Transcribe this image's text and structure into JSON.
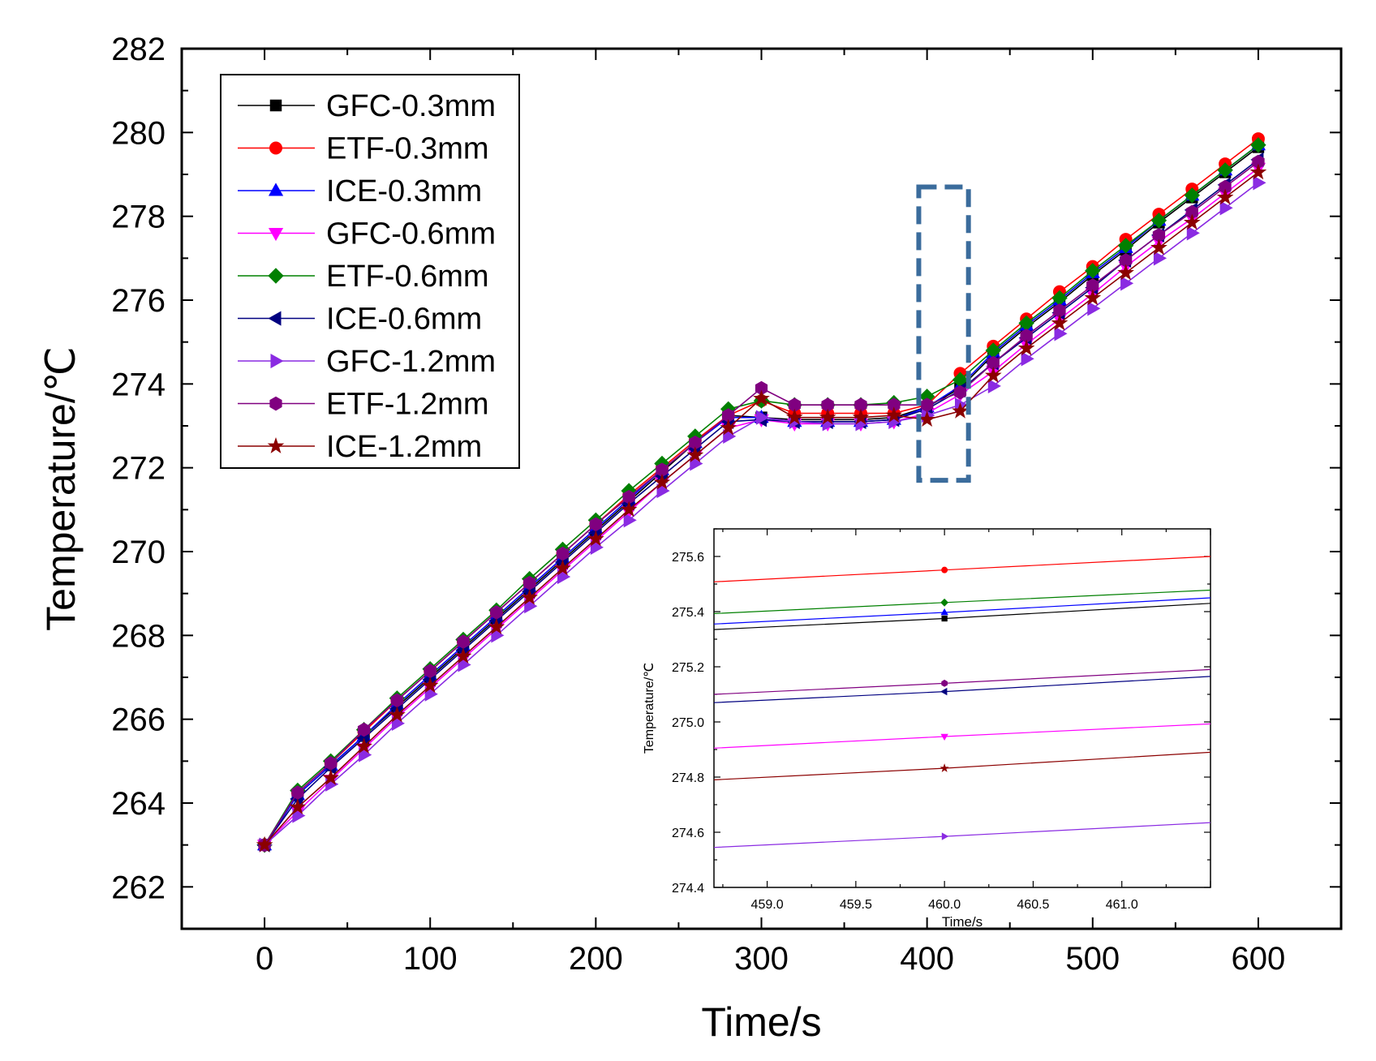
{
  "chart_data": [
    {
      "type": "line",
      "xlabel": "Time/s",
      "ylabel": "Temperature/℃",
      "xlim": [
        -50,
        650
      ],
      "ylim": [
        261,
        282
      ],
      "xticks": [
        0,
        100,
        200,
        300,
        400,
        500,
        600
      ],
      "yticks": [
        262,
        264,
        266,
        268,
        270,
        272,
        274,
        276,
        278,
        280,
        282
      ],
      "grid": false,
      "legend_position": "top-left",
      "x": [
        0,
        20,
        40,
        60,
        80,
        100,
        120,
        140,
        160,
        180,
        200,
        220,
        240,
        260,
        280,
        300,
        320,
        340,
        360,
        380,
        400,
        420,
        440,
        460,
        480,
        500,
        520,
        540,
        560,
        580,
        600
      ],
      "series": [
        {
          "name": "GFC-0.3mm",
          "color": "#000000",
          "marker": "square",
          "values": [
            263.0,
            264.2,
            264.9,
            265.6,
            266.3,
            267.0,
            267.7,
            268.4,
            269.1,
            269.8,
            270.5,
            271.2,
            271.9,
            272.6,
            273.25,
            273.2,
            273.15,
            273.15,
            273.15,
            273.2,
            273.45,
            273.9,
            274.7,
            275.35,
            275.95,
            276.6,
            277.2,
            277.85,
            278.45,
            279.05,
            279.65
          ]
        },
        {
          "name": "ETF-0.3mm",
          "color": "#ff0000",
          "marker": "circle",
          "values": [
            263.0,
            264.25,
            264.95,
            265.7,
            266.45,
            267.15,
            267.85,
            268.55,
            269.25,
            269.95,
            270.65,
            271.35,
            272.0,
            272.65,
            273.25,
            273.6,
            273.3,
            273.3,
            273.3,
            273.3,
            273.5,
            274.25,
            274.9,
            275.55,
            276.2,
            276.8,
            277.45,
            278.05,
            278.65,
            279.25,
            279.85
          ]
        },
        {
          "name": "ICE-0.3mm",
          "color": "#0000ff",
          "marker": "triangle-up",
          "values": [
            263.0,
            264.2,
            264.9,
            265.6,
            266.35,
            267.05,
            267.75,
            268.45,
            269.15,
            269.85,
            270.55,
            271.25,
            271.95,
            272.6,
            273.2,
            273.2,
            273.1,
            273.1,
            273.1,
            273.15,
            273.45,
            273.95,
            274.75,
            275.4,
            276.0,
            276.65,
            277.25,
            277.9,
            278.5,
            279.1,
            279.7
          ]
        },
        {
          "name": "GFC-0.6mm",
          "color": "#ff00ff",
          "marker": "triangle-down",
          "values": [
            263.0,
            263.8,
            264.55,
            265.3,
            266.05,
            266.75,
            267.45,
            268.15,
            268.85,
            269.55,
            270.25,
            270.95,
            271.65,
            272.3,
            272.95,
            273.15,
            273.05,
            273.05,
            273.05,
            273.1,
            273.3,
            273.75,
            274.3,
            274.95,
            275.55,
            276.15,
            276.8,
            277.4,
            277.95,
            278.55,
            279.15
          ]
        },
        {
          "name": "ETF-0.6mm",
          "color": "#008000",
          "marker": "diamond",
          "values": [
            263.0,
            264.3,
            265.0,
            265.75,
            266.5,
            267.2,
            267.9,
            268.6,
            269.35,
            270.05,
            270.75,
            271.45,
            272.1,
            272.75,
            273.4,
            273.6,
            273.5,
            273.5,
            273.5,
            273.55,
            273.7,
            274.1,
            274.8,
            275.45,
            276.05,
            276.7,
            277.3,
            277.9,
            278.5,
            279.1,
            279.7
          ]
        },
        {
          "name": "ICE-0.6mm",
          "color": "#000080",
          "marker": "triangle-left",
          "values": [
            263.0,
            264.1,
            264.85,
            265.55,
            266.25,
            266.95,
            267.65,
            268.35,
            269.05,
            269.75,
            270.45,
            271.15,
            271.8,
            272.45,
            273.1,
            273.15,
            273.1,
            273.1,
            273.1,
            273.15,
            273.4,
            273.85,
            274.5,
            275.1,
            275.7,
            276.3,
            276.95,
            277.55,
            278.15,
            278.75,
            279.35
          ]
        },
        {
          "name": "GFC-1.2mm",
          "color": "#8a2be2",
          "marker": "triangle-right",
          "values": [
            263.0,
            263.7,
            264.45,
            265.15,
            265.9,
            266.6,
            267.3,
            268.0,
            268.7,
            269.4,
            270.1,
            270.75,
            271.45,
            272.1,
            272.75,
            273.2,
            273.1,
            273.05,
            273.05,
            273.1,
            273.25,
            273.5,
            273.95,
            274.6,
            275.2,
            275.8,
            276.4,
            277.0,
            277.6,
            278.2,
            278.8
          ]
        },
        {
          "name": "ETF-1.2mm",
          "color": "#800080",
          "marker": "hexagon",
          "values": [
            263.0,
            264.25,
            264.95,
            265.75,
            266.45,
            267.15,
            267.85,
            268.55,
            269.25,
            269.95,
            270.65,
            271.3,
            271.95,
            272.6,
            273.25,
            273.9,
            273.5,
            273.5,
            273.5,
            273.5,
            273.5,
            273.8,
            274.5,
            275.15,
            275.75,
            276.35,
            276.95,
            277.55,
            278.1,
            278.7,
            279.3
          ]
        },
        {
          "name": "ICE-1.2mm",
          "color": "#8b0000",
          "marker": "star",
          "values": [
            263.0,
            263.9,
            264.6,
            265.35,
            266.1,
            266.8,
            267.5,
            268.2,
            268.9,
            269.6,
            270.3,
            271.0,
            271.65,
            272.3,
            272.95,
            273.65,
            273.2,
            273.2,
            273.2,
            273.25,
            273.15,
            273.35,
            274.2,
            274.85,
            275.45,
            276.05,
            276.65,
            277.25,
            277.85,
            278.45,
            279.05
          ]
        }
      ]
    },
    {
      "type": "line",
      "name": "inset",
      "xlabel": "Time/s",
      "ylabel": "Temperature/℃",
      "xlim": [
        458.7,
        461.5
      ],
      "ylim": [
        274.4,
        275.7
      ],
      "xticks": [
        "459.0",
        "459.5",
        "460.0",
        "460.5",
        "461.0"
      ],
      "yticks": [
        "274.4",
        "274.6",
        "274.8",
        "275.0",
        "275.2",
        "275.4",
        "275.6"
      ],
      "grid": false,
      "x": [
        458.7,
        460.0,
        461.5
      ],
      "series": [
        {
          "name": "ETF-0.3mm",
          "color": "#ff0000",
          "marker": "circle",
          "values": [
            275.508,
            275.551,
            275.6
          ]
        },
        {
          "name": "ETF-0.6mm",
          "color": "#008000",
          "marker": "diamond",
          "values": [
            275.393,
            275.433,
            275.478
          ]
        },
        {
          "name": "ICE-0.3mm",
          "color": "#0000ff",
          "marker": "triangle-up",
          "values": [
            275.355,
            275.397,
            275.45
          ]
        },
        {
          "name": "GFC-0.3mm",
          "color": "#000000",
          "marker": "square",
          "values": [
            275.335,
            275.375,
            275.43
          ]
        },
        {
          "name": "ETF-1.2mm",
          "color": "#800080",
          "marker": "hexagon",
          "values": [
            275.1,
            275.14,
            275.19
          ]
        },
        {
          "name": "ICE-0.6mm",
          "color": "#000080",
          "marker": "triangle-left",
          "values": [
            275.07,
            275.11,
            275.165
          ]
        },
        {
          "name": "GFC-0.6mm",
          "color": "#ff00ff",
          "marker": "triangle-down",
          "values": [
            274.905,
            274.947,
            274.993
          ]
        },
        {
          "name": "ICE-1.2mm",
          "color": "#8b0000",
          "marker": "star",
          "values": [
            274.79,
            274.832,
            274.89
          ]
        },
        {
          "name": "GFC-1.2mm",
          "color": "#8a2be2",
          "marker": "triangle-right",
          "values": [
            274.545,
            274.585,
            274.635
          ]
        }
      ]
    }
  ],
  "highlight_box": {
    "x_range": [
      395,
      425
    ],
    "y_range": [
      271.7,
      278.7
    ],
    "color": "#3b6c9c"
  }
}
